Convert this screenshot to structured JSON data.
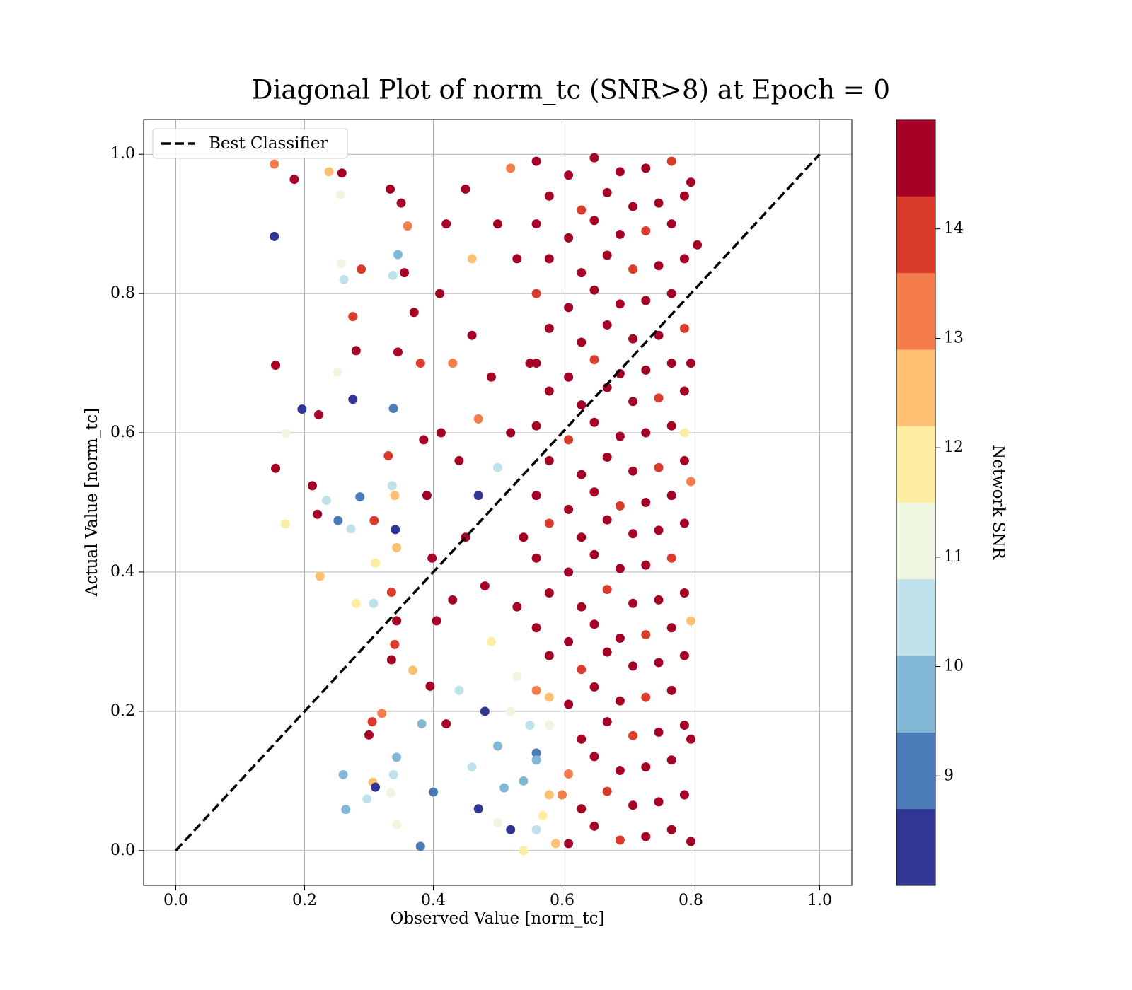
{
  "chart_data": {
    "type": "scatter",
    "title": "Diagonal Plot of norm_tc (SNR>8) at Epoch = 0",
    "xlabel": "Observed Value [norm_tc]",
    "ylabel": "Actual Value [norm_tc]",
    "colorbar_label": "Network SNR",
    "xlim": [
      -0.05,
      1.05
    ],
    "ylim": [
      -0.05,
      1.05
    ],
    "xticks": [
      {
        "value": 0,
        "label": "0.0"
      },
      0.2,
      0.4,
      0.6,
      0.8,
      {
        "value": 1,
        "label": "1.0"
      }
    ],
    "yticks": [
      {
        "value": 0,
        "label": "0.0"
      },
      0.2,
      0.4,
      0.6,
      0.8,
      {
        "value": 1,
        "label": "1.0"
      }
    ],
    "grid": true,
    "legend": "upper left",
    "clim": [
      8,
      15
    ],
    "cticks": [
      9,
      10,
      11,
      12,
      13,
      14
    ],
    "colormap": [
      "#313695",
      "#4a7bb7",
      "#82b7d7",
      "#bee1ec",
      "#eef6df",
      "#fdeda2",
      "#fdbf71",
      "#f57c4b",
      "#db3b2a",
      "#a50026"
    ],
    "reference_line": {
      "name": "Best Classifier",
      "color": "#000000",
      "x": [
        0,
        1
      ],
      "y": [
        0,
        1
      ]
    },
    "x": [
      0.153,
      0.184,
      0.238,
      0.258,
      0.153,
      0.256,
      0.257,
      0.261,
      0.288,
      0.155,
      0.275,
      0.28,
      0.196,
      0.222,
      0.275,
      0.155,
      0.212,
      0.22,
      0.234,
      0.252,
      0.286,
      0.272,
      0.17,
      0.171,
      0.251,
      0.308,
      0.31,
      0.224,
      0.28,
      0.307,
      0.335,
      0.343,
      0.34,
      0.335,
      0.368,
      0.395,
      0.382,
      0.42,
      0.32,
      0.305,
      0.3,
      0.26,
      0.343,
      0.338,
      0.306,
      0.31,
      0.297,
      0.264,
      0.334,
      0.343,
      0.38,
      0.4,
      0.341,
      0.343,
      0.336,
      0.34,
      0.33,
      0.338,
      0.345,
      0.337,
      0.345,
      0.333,
      0.35,
      0.355,
      0.36,
      0.37,
      0.38,
      0.385,
      0.39,
      0.398,
      0.405,
      0.412,
      0.41,
      0.42,
      0.43,
      0.44,
      0.43,
      0.44,
      0.45,
      0.45,
      0.46,
      0.46,
      0.47,
      0.47,
      0.48,
      0.48,
      0.46,
      0.47,
      0.49,
      0.49,
      0.5,
      0.5,
      0.5,
      0.5,
      0.52,
      0.54,
      0.55,
      0.53,
      0.57,
      0.56,
      0.52,
      0.58,
      0.54,
      0.51,
      0.6,
      0.59,
      0.53,
      0.52,
      0.53,
      0.52,
      0.55,
      0.54,
      0.8,
      0.81,
      0.8,
      0.8,
      0.8,
      0.8,
      0.8,
      0.79,
      0.56,
      0.61,
      0.65,
      0.69,
      0.73,
      0.77,
      0.58,
      0.63,
      0.67,
      0.71,
      0.75,
      0.79,
      0.56,
      0.61,
      0.65,
      0.69,
      0.73,
      0.77,
      0.58,
      0.63,
      0.67,
      0.71,
      0.75,
      0.79,
      0.56,
      0.61,
      0.65,
      0.69,
      0.73,
      0.77,
      0.58,
      0.63,
      0.67,
      0.71,
      0.75,
      0.79,
      0.56,
      0.61,
      0.65,
      0.69,
      0.73,
      0.77,
      0.58,
      0.63,
      0.67,
      0.71,
      0.75,
      0.79,
      0.56,
      0.61,
      0.65,
      0.69,
      0.73,
      0.77,
      0.58,
      0.63,
      0.67,
      0.71,
      0.75,
      0.79,
      0.56,
      0.61,
      0.65,
      0.69,
      0.73,
      0.77,
      0.58,
      0.63,
      0.67,
      0.71,
      0.75,
      0.79,
      0.56,
      0.61,
      0.65,
      0.69,
      0.73,
      0.77,
      0.58,
      0.63,
      0.67,
      0.71,
      0.75,
      0.79,
      0.56,
      0.61,
      0.65,
      0.69,
      0.73,
      0.77,
      0.58,
      0.63,
      0.67,
      0.71,
      0.75,
      0.79,
      0.56,
      0.61,
      0.65,
      0.69,
      0.73,
      0.77,
      0.58,
      0.63,
      0.67,
      0.71,
      0.75,
      0.79,
      0.56,
      0.61,
      0.65,
      0.69,
      0.73,
      0.77,
      0.58,
      0.63,
      0.67,
      0.71,
      0.75,
      0.79,
      0.56,
      0.61,
      0.65,
      0.69,
      0.73,
      0.77
    ],
    "y": [
      0.986,
      0.964,
      0.975,
      0.973,
      0.882,
      0.942,
      0.843,
      0.82,
      0.835,
      0.697,
      0.767,
      0.718,
      0.634,
      0.626,
      0.648,
      0.549,
      0.524,
      0.483,
      0.503,
      0.474,
      0.508,
      0.462,
      0.469,
      0.599,
      0.687,
      0.474,
      0.413,
      0.394,
      0.355,
      0.355,
      0.371,
      0.33,
      0.296,
      0.274,
      0.259,
      0.236,
      0.182,
      0.182,
      0.197,
      0.185,
      0.166,
      0.109,
      0.134,
      0.109,
      0.098,
      0.091,
      0.074,
      0.059,
      0.083,
      0.037,
      0.006,
      0.084,
      0.461,
      0.435,
      0.524,
      0.51,
      0.567,
      0.635,
      0.856,
      0.826,
      0.716,
      0.95,
      0.93,
      0.83,
      0.897,
      0.773,
      0.7,
      0.59,
      0.51,
      0.42,
      0.33,
      0.6,
      0.8,
      0.9,
      0.7,
      0.56,
      0.36,
      0.23,
      0.45,
      0.95,
      0.85,
      0.74,
      0.62,
      0.51,
      0.38,
      0.2,
      0.12,
      0.06,
      0.3,
      0.68,
      0.55,
      0.9,
      0.15,
      0.04,
      0.03,
      0.1,
      0.18,
      0.25,
      0.05,
      0.14,
      0.2,
      0.22,
      0,
      0.09,
      0.08,
      0.01,
      0.35,
      0.6,
      0.85,
      0.98,
      0.7,
      0.45,
      0.96,
      0.87,
      0.53,
      0.33,
      0.013,
      0.7,
      0.16,
      0.6,
      0.03,
      0.01,
      0.035,
      0.015,
      0.02,
      0.03,
      0.08,
      0.06,
      0.085,
      0.065,
      0.07,
      0.08,
      0.13,
      0.11,
      0.135,
      0.115,
      0.12,
      0.13,
      0.18,
      0.16,
      0.185,
      0.165,
      0.17,
      0.18,
      0.23,
      0.21,
      0.235,
      0.215,
      0.22,
      0.23,
      0.28,
      0.26,
      0.285,
      0.265,
      0.27,
      0.28,
      0.32,
      0.3,
      0.325,
      0.305,
      0.31,
      0.32,
      0.37,
      0.35,
      0.375,
      0.355,
      0.36,
      0.37,
      0.42,
      0.4,
      0.425,
      0.405,
      0.41,
      0.42,
      0.47,
      0.45,
      0.475,
      0.455,
      0.46,
      0.47,
      0.51,
      0.49,
      0.515,
      0.495,
      0.5,
      0.51,
      0.56,
      0.54,
      0.565,
      0.545,
      0.55,
      0.56,
      0.61,
      0.59,
      0.615,
      0.595,
      0.6,
      0.61,
      0.66,
      0.64,
      0.665,
      0.645,
      0.65,
      0.66,
      0.7,
      0.68,
      0.705,
      0.685,
      0.69,
      0.7,
      0.75,
      0.73,
      0.755,
      0.735,
      0.74,
      0.75,
      0.8,
      0.78,
      0.805,
      0.785,
      0.79,
      0.8,
      0.85,
      0.83,
      0.855,
      0.835,
      0.84,
      0.85,
      0.9,
      0.88,
      0.905,
      0.885,
      0.89,
      0.9,
      0.94,
      0.92,
      0.945,
      0.925,
      0.93,
      0.94,
      0.99,
      0.97,
      0.995,
      0.975,
      0.98,
      0.99
    ],
    "snr": [
      13.3,
      14.6,
      12.6,
      14.8,
      8.2,
      11.2,
      11.3,
      10.5,
      13.9,
      14.7,
      13.6,
      14.7,
      8.3,
      14.8,
      8.3,
      14.7,
      14.8,
      14.7,
      10.6,
      9.2,
      9.3,
      10.6,
      12.2,
      11.3,
      11.2,
      14.2,
      12.2,
      12.7,
      12.2,
      10.6,
      14.2,
      14.7,
      13.6,
      14.8,
      12.5,
      14.8,
      9.4,
      14.3,
      13.5,
      13.6,
      14.3,
      9.5,
      10,
      10.6,
      12.6,
      8.2,
      10.5,
      9.6,
      11.2,
      11.4,
      9.3,
      9.3,
      8.2,
      12.5,
      10.6,
      12.6,
      14.2,
      9.3,
      9.5,
      10.4,
      14.7,
      14.8,
      14.3,
      14.7,
      13.1,
      14.8,
      14.2,
      14.7,
      14.8,
      14.8,
      14.7,
      14.7,
      14.8,
      14.5,
      13.3,
      14.8,
      14.6,
      10.4,
      14.7,
      14.8,
      12.6,
      14.7,
      13.5,
      8.3,
      14.7,
      8.4,
      10.3,
      8.3,
      12.1,
      14.6,
      10.4,
      14.8,
      9.5,
      11.2,
      8.5,
      9.5,
      10.4,
      11.3,
      12,
      9.2,
      10.8,
      12.7,
      11.5,
      9.8,
      13.1,
      12.3,
      14.5,
      14.6,
      14.5,
      13,
      14.5,
      14.5,
      14.6,
      14.5,
      13.3,
      12.5,
      14.7,
      14.5,
      14.6,
      12.1,
      10.2,
      14.5,
      14.6,
      13.9,
      14.7,
      14.4,
      12.3,
      14.5,
      13.8,
      14.6,
      14.5,
      14.7,
      9.4,
      13.3,
      14.5,
      14.6,
      14.4,
      14.5,
      11.0,
      14.6,
      14.5,
      13.9,
      14.7,
      14.5,
      13.2,
      14.5,
      14.7,
      14.5,
      13.8,
      14.6,
      14.5,
      13.9,
      14.5,
      14.6,
      14.5,
      14.4,
      14.6,
      14.5,
      14.4,
      14.7,
      13.9,
      14.5,
      14.5,
      14.6,
      13.8,
      14.5,
      14.6,
      14.5,
      14.7,
      14.5,
      14.5,
      14.6,
      14.5,
      13.9,
      13.9,
      14.5,
      14.6,
      14.5,
      14.7,
      14.5,
      14.5,
      14.6,
      14.5,
      13.8,
      14.5,
      14.6,
      14.6,
      14.5,
      14.7,
      14.5,
      13.9,
      14.5,
      14.5,
      13.9,
      14.5,
      14.6,
      14.5,
      14.7,
      14.5,
      14.6,
      14.5,
      14.5,
      13.8,
      14.5,
      14.7,
      14.5,
      13.9,
      14.6,
      14.5,
      14.5,
      14.5,
      14.5,
      14.6,
      14.5,
      14.7,
      13.9,
      13.8,
      14.6,
      14.5,
      14.5,
      14.6,
      14.5,
      14.5,
      14.5,
      14.7,
      13.9,
      14.5,
      14.6,
      14.6,
      14.5,
      14.5,
      14.6,
      13.9,
      14.5,
      14.5,
      13.8,
      14.6,
      14.5,
      14.5,
      14.7,
      14.5,
      14.6,
      14.5,
      14.7,
      14.5,
      13.9
    ]
  }
}
